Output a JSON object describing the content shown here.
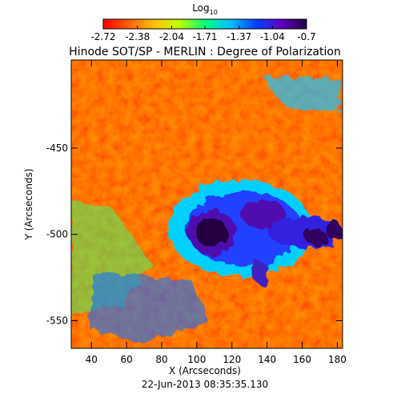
{
  "chart_data": {
    "type": "heatmap",
    "title": "Hinode SOT/SP - MERLIN : Degree of Polarization",
    "colorbar_label": "Log",
    "colorbar_label_subscript": "10",
    "colorbar_lim": [
      -2.72,
      -0.7
    ],
    "colorbar_ticks": [
      -2.72,
      -2.38,
      -2.04,
      -1.71,
      -1.37,
      -1.04,
      -0.7
    ],
    "colorscale": [
      "#ff0000",
      "#ff6000",
      "#ffc000",
      "#c0ff00",
      "#00ff80",
      "#00c0ff",
      "#0040ff",
      "#6000c0",
      "#200040"
    ],
    "xlabel": "X (Arcseconds)",
    "ylabel": "Y (Arcseconds)",
    "xlim": [
      28.5,
      183
    ],
    "xticks": [
      40,
      60,
      80,
      100,
      120,
      140,
      160,
      180
    ],
    "ylim": [
      -566,
      -399
    ],
    "yticks": [
      -450,
      -500,
      -550
    ],
    "date": "22-Jun-2013 08:35:35.130"
  }
}
